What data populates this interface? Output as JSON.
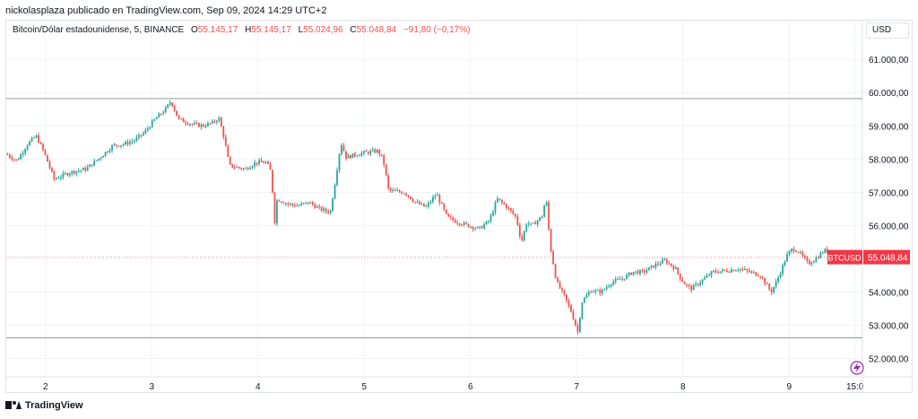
{
  "header": {
    "published_line": "nickolasplaza publicado en TradingView.com, Sep 09, 2024 14:29 UTC+2"
  },
  "legend": {
    "symbol": "Bitcoin/Dólar estadounidense, 5, BINANCE",
    "open_label": "O",
    "open": "55.145,17",
    "high_label": "H",
    "high": "55.145,17",
    "low_label": "L",
    "low": "55.024,96",
    "close_label": "C",
    "close": "55.048,84",
    "change": "−91,80 (−0,17%)"
  },
  "currency_button": "USD",
  "price_tag": {
    "symbol": "BTCUSD",
    "value": "55.048,84"
  },
  "footer": {
    "brand": "TradingView"
  },
  "colors": {
    "up": "#26a69a",
    "down": "#ef5350",
    "grid": "#f0f3fa",
    "tag": "#f23645",
    "hline": "#9598a1",
    "quick_icon": "#9c27b0"
  },
  "chart_data": {
    "type": "candlestick",
    "interval": "5",
    "y_ticks": [
      "61.000,00",
      "60.000,00",
      "59.000,00",
      "58.000,00",
      "57.000,00",
      "56.000,00",
      "55.000,00",
      "54.000,00",
      "53.000,00",
      "52.000,00"
    ],
    "y_tick_values": [
      61000,
      60000,
      59000,
      58000,
      57000,
      56000,
      55000,
      54000,
      53000,
      52000
    ],
    "ylim": [
      51500,
      61600
    ],
    "x_ticks": [
      {
        "label": "2",
        "t": 0.37
      },
      {
        "label": "3",
        "t": 1.37
      },
      {
        "label": "4",
        "t": 2.37
      },
      {
        "label": "5",
        "t": 3.37
      },
      {
        "label": "6",
        "t": 4.37
      },
      {
        "label": "7",
        "t": 5.37
      },
      {
        "label": "8",
        "t": 6.37
      },
      {
        "label": "9",
        "t": 7.37
      },
      {
        "label": "15:0",
        "t": 7.99
      }
    ],
    "xlim": [
      0,
      8.06
    ],
    "horizontal_lines": [
      59820,
      52620
    ],
    "last_price": 55048.84,
    "price_path": [
      [
        0.0,
        58150
      ],
      [
        0.1,
        57950
      ],
      [
        0.2,
        58450
      ],
      [
        0.28,
        58700
      ],
      [
        0.35,
        58250
      ],
      [
        0.45,
        57400
      ],
      [
        0.6,
        57600
      ],
      [
        0.75,
        57700
      ],
      [
        0.9,
        58100
      ],
      [
        1.0,
        58400
      ],
      [
        1.1,
        58450
      ],
      [
        1.2,
        58550
      ],
      [
        1.3,
        58800
      ],
      [
        1.4,
        59200
      ],
      [
        1.5,
        59500
      ],
      [
        1.55,
        59750
      ],
      [
        1.62,
        59200
      ],
      [
        1.75,
        59050
      ],
      [
        1.85,
        59000
      ],
      [
        1.95,
        59100
      ],
      [
        2.0,
        59250
      ],
      [
        2.05,
        58650
      ],
      [
        2.1,
        57800
      ],
      [
        2.25,
        57700
      ],
      [
        2.35,
        57900
      ],
      [
        2.45,
        57900
      ],
      [
        2.5,
        57550
      ],
      [
        2.52,
        55900
      ],
      [
        2.55,
        56800
      ],
      [
        2.65,
        56650
      ],
      [
        2.75,
        56600
      ],
      [
        2.85,
        56700
      ],
      [
        2.95,
        56500
      ],
      [
        3.05,
        56400
      ],
      [
        3.1,
        57400
      ],
      [
        3.15,
        58500
      ],
      [
        3.2,
        58050
      ],
      [
        3.3,
        58150
      ],
      [
        3.4,
        58200
      ],
      [
        3.5,
        58250
      ],
      [
        3.55,
        57950
      ],
      [
        3.6,
        57050
      ],
      [
        3.75,
        57000
      ],
      [
        3.85,
        56700
      ],
      [
        3.95,
        56550
      ],
      [
        4.05,
        56950
      ],
      [
        4.15,
        56250
      ],
      [
        4.25,
        56100
      ],
      [
        4.35,
        56000
      ],
      [
        4.45,
        55900
      ],
      [
        4.55,
        56150
      ],
      [
        4.62,
        56800
      ],
      [
        4.7,
        56600
      ],
      [
        4.8,
        56250
      ],
      [
        4.85,
        55500
      ],
      [
        4.9,
        56100
      ],
      [
        4.95,
        56000
      ],
      [
        5.05,
        56300
      ],
      [
        5.08,
        56900
      ],
      [
        5.12,
        55400
      ],
      [
        5.18,
        54300
      ],
      [
        5.25,
        53900
      ],
      [
        5.32,
        53400
      ],
      [
        5.38,
        52800
      ],
      [
        5.42,
        53700
      ],
      [
        5.5,
        54050
      ],
      [
        5.6,
        54000
      ],
      [
        5.7,
        54300
      ],
      [
        5.8,
        54400
      ],
      [
        5.9,
        54600
      ],
      [
        6.0,
        54600
      ],
      [
        6.1,
        54800
      ],
      [
        6.2,
        54950
      ],
      [
        6.3,
        54700
      ],
      [
        6.35,
        54400
      ],
      [
        6.4,
        54200
      ],
      [
        6.45,
        54100
      ],
      [
        6.55,
        54350
      ],
      [
        6.65,
        54600
      ],
      [
        6.8,
        54650
      ],
      [
        6.9,
        54700
      ],
      [
        7.0,
        54600
      ],
      [
        7.1,
        54500
      ],
      [
        7.2,
        54000
      ],
      [
        7.25,
        54300
      ],
      [
        7.3,
        54700
      ],
      [
        7.35,
        55100
      ],
      [
        7.4,
        55300
      ],
      [
        7.45,
        55250
      ],
      [
        7.55,
        54850
      ],
      [
        7.62,
        55000
      ],
      [
        7.7,
        55250
      ],
      [
        7.8,
        55200
      ],
      [
        7.9,
        55050
      ],
      [
        7.97,
        55048
      ]
    ]
  }
}
